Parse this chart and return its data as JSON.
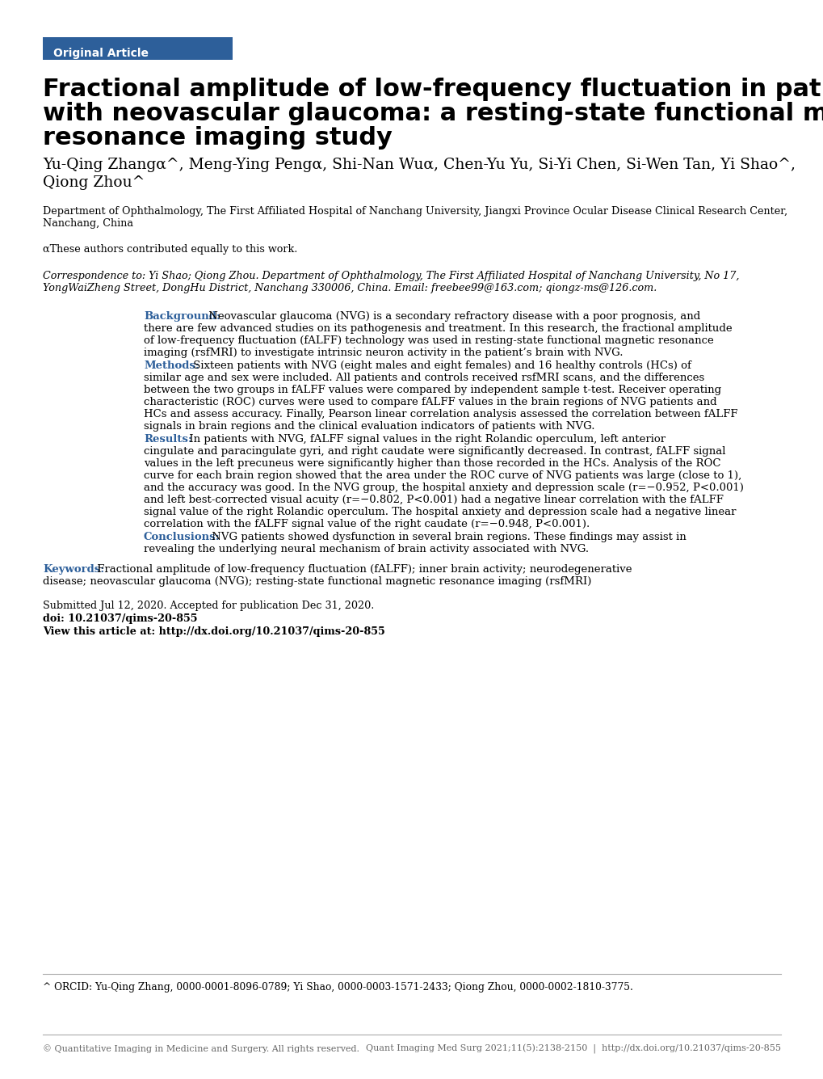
{
  "page_bg": "#ffffff",
  "header_bg": "#2d5f9a",
  "header_text": "Original Article",
  "header_text_color": "#ffffff",
  "title_line1": "Fractional amplitude of low-frequency fluctuation in patients",
  "title_line2": "with neovascular glaucoma: a resting-state functional magnetic",
  "title_line3": "resonance imaging study",
  "authors_line1": "Yu-Qing Zhangα^, Meng-Ying Pengα, Shi-Nan Wuα, Chen-Yu Yu, Si-Yi Chen, Si-Wen Tan, Yi Shao^,",
  "authors_line2": "Qiong Zhou^",
  "affil_line1": "Department of Ophthalmology, The First Affiliated Hospital of Nanchang University, Jiangxi Province Ocular Disease Clinical Research Center,",
  "affil_line2": "Nanchang, China",
  "equal_contrib": "αThese authors contributed equally to this work.",
  "corr_line1": "Correspondence to: Yi Shao; Qiong Zhou. Department of Ophthalmology, The First Affiliated Hospital of Nanchang University, No 17,",
  "corr_line2": "YongWaiZheng Street, DongHu District, Nanchang 330006, China. Email: freebee99@163.com; qiongz-ms@126.com.",
  "abstract_label_color": "#2d5f9a",
  "bg_label": "Background:",
  "bg_text_line1": " Neovascular glaucoma (NVG) is a secondary refractory disease with a poor prognosis, and",
  "bg_text_line2": "there are few advanced studies on its pathogenesis and treatment. In this research, the fractional amplitude",
  "bg_text_line3": "of low-frequency fluctuation (fALFF) technology was used in resting-state functional magnetic resonance",
  "bg_text_line4": "imaging (rsfMRI) to investigate intrinsic neuron activity in the patient’s brain with NVG.",
  "meth_label": "Methods:",
  "meth_text_line1": " Sixteen patients with NVG (eight males and eight females) and 16 healthy controls (HCs) of",
  "meth_text_line2": "similar age and sex were included. All patients and controls received rsfMRI scans, and the differences",
  "meth_text_line3": "between the two groups in fALFF values were compared by independent sample t-test. Receiver operating",
  "meth_text_line4": "characteristic (ROC) curves were used to compare fALFF values in the brain regions of NVG patients and",
  "meth_text_line5": "HCs and assess accuracy. Finally, Pearson linear correlation analysis assessed the correlation between fALFF",
  "meth_text_line6": "signals in brain regions and the clinical evaluation indicators of patients with NVG.",
  "res_label": "Results:",
  "res_text_line1": " In patients with NVG, fALFF signal values in the right Rolandic operculum, left anterior",
  "res_text_line2": "cingulate and paracingulate gyri, and right caudate were significantly decreased. In contrast, fALFF signal",
  "res_text_line3": "values in the left precuneus were significantly higher than those recorded in the HCs. Analysis of the ROC",
  "res_text_line4": "curve for each brain region showed that the area under the ROC curve of NVG patients was large (close to 1),",
  "res_text_line5": "and the accuracy was good. In the NVG group, the hospital anxiety and depression scale (r=−0.952, P<0.001)",
  "res_text_line6": "and left best-corrected visual acuity (r=−0.802, P<0.001) had a negative linear correlation with the fALFF",
  "res_text_line7": "signal value of the right Rolandic operculum. The hospital anxiety and depression scale had a negative linear",
  "res_text_line8": "correlation with the fALFF signal value of the right caudate (r=−0.948, P<0.001).",
  "conc_label": "Conclusions:",
  "conc_text_line1": " NVG patients showed dysfunction in several brain regions. These findings may assist in",
  "conc_text_line2": "revealing the underlying neural mechanism of brain activity associated with NVG.",
  "kw_label": "Keywords:",
  "kw_text_line1": " Fractional amplitude of low-frequency fluctuation (fALFF); inner brain activity; neurodegenerative",
  "kw_text_line2": "disease; neovascular glaucoma (NVG); resting-state functional magnetic resonance imaging (rsfMRI)",
  "submitted": "Submitted Jul 12, 2020. Accepted for publication Dec 31, 2020.",
  "doi": "doi: 10.21037/qims-20-855",
  "view": "View this article at: http://dx.doi.org/10.21037/qims-20-855",
  "orcid": "^ ORCID: Yu-Qing Zhang, 0000-0001-8096-0789; Yi Shao, 0000-0003-1571-2433; Qiong Zhou, 0000-0002-1810-3775.",
  "footer_left": "© Quantitative Imaging in Medicine and Surgery. All rights reserved.",
  "footer_right": "Quant Imaging Med Surg 2021;11(5):2138-2150  |  http://dx.doi.org/10.21037/qims-20-855",
  "footer_color": "#666666",
  "line_color": "#aaaaaa"
}
